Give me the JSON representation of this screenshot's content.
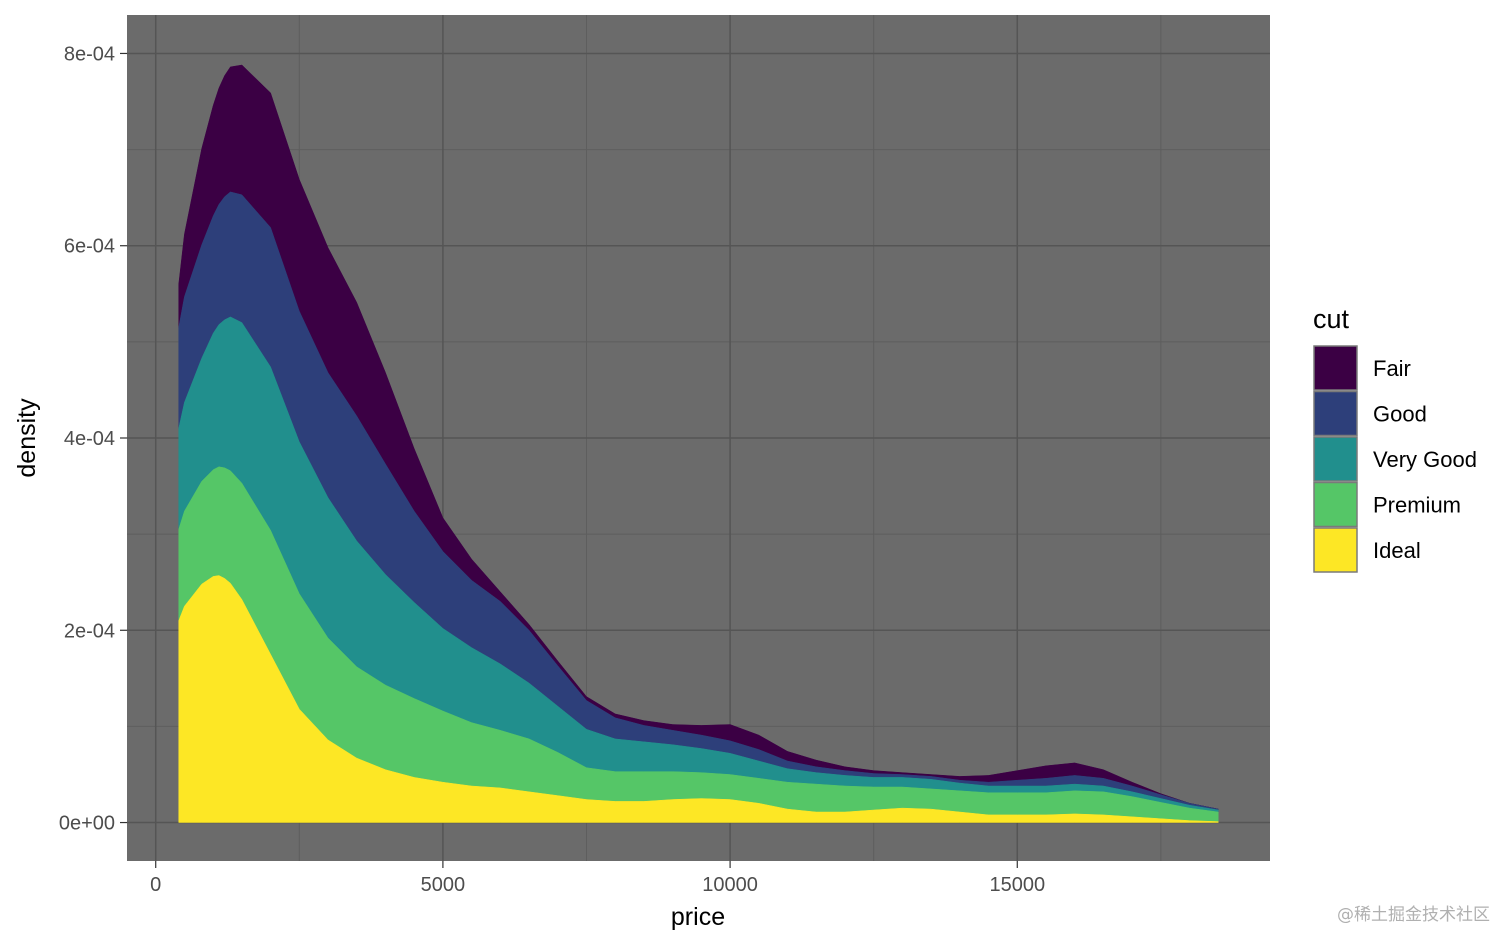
{
  "chart_data": {
    "type": "area",
    "stacked": true,
    "xlabel": "price",
    "ylabel": "density",
    "xlim": [
      -500,
      19400
    ],
    "ylim": [
      -4e-05,
      0.00084
    ],
    "x_ticks": [
      0,
      5000,
      10000,
      15000
    ],
    "x_tick_labels": [
      "0",
      "5000",
      "10000",
      "15000"
    ],
    "y_ticks": [
      0,
      0.0002,
      0.0004,
      0.0006,
      0.0008
    ],
    "y_tick_labels": [
      "0e+00",
      "2e-04",
      "4e-04",
      "6e-04",
      "8e-04"
    ],
    "grid": true,
    "background": "#6b6b6b",
    "legend": {
      "title": "cut",
      "position": "right"
    },
    "x": [
      400,
      500,
      800,
      1000,
      1100,
      1200,
      1300,
      1500,
      2000,
      2500,
      3000,
      3500,
      4000,
      4500,
      5000,
      5500,
      6000,
      6500,
      7000,
      7500,
      8000,
      8500,
      9000,
      9500,
      10000,
      10500,
      11000,
      11500,
      12000,
      12500,
      13000,
      13500,
      14000,
      14500,
      15000,
      15500,
      16000,
      16500,
      17000,
      17500,
      18000,
      18500
    ],
    "series": [
      {
        "name": "Ideal",
        "color": "#fde725",
        "values": [
          0.00021,
          0.000225,
          0.000248,
          0.000256,
          0.000257,
          0.000254,
          0.000249,
          0.000232,
          0.000175,
          0.000118,
          8.6e-05,
          6.7e-05,
          5.5e-05,
          4.7e-05,
          4.2e-05,
          3.8e-05,
          3.6e-05,
          3.2e-05,
          2.8e-05,
          2.4e-05,
          2.2e-05,
          2.2e-05,
          2.4e-05,
          2.5e-05,
          2.4e-05,
          2e-05,
          1.4e-05,
          1.1e-05,
          1.1e-05,
          1.3e-05,
          1.5e-05,
          1.4e-05,
          1.1e-05,
          8e-06,
          8e-06,
          8e-06,
          9e-06,
          8e-06,
          6e-06,
          4e-06,
          2e-06,
          1e-06
        ]
      },
      {
        "name": "Premium",
        "color": "#55c667",
        "values": [
          9.5e-05,
          9.9e-05,
          0.000107,
          0.000111,
          0.000113,
          0.000115,
          0.000117,
          0.000121,
          0.000129,
          0.00012,
          0.000106,
          9.5e-05,
          8.8e-05,
          8.2e-05,
          7.4e-05,
          6.6e-05,
          6e-05,
          5.5e-05,
          4.5e-05,
          3.3e-05,
          3.1e-05,
          3.1e-05,
          2.9e-05,
          2.7e-05,
          2.6e-05,
          2.6e-05,
          2.8e-05,
          2.9e-05,
          2.7e-05,
          2.4e-05,
          2.2e-05,
          2.1e-05,
          2.2e-05,
          2.3e-05,
          2.3e-05,
          2.3e-05,
          2.4e-05,
          2.4e-05,
          2.1e-05,
          1.7e-05,
          1.3e-05,
          1e-05
        ]
      },
      {
        "name": "Very Good",
        "color": "#218f8d",
        "values": [
          0.000105,
          0.000113,
          0.000128,
          0.000142,
          0.000148,
          0.000154,
          0.00016,
          0.000167,
          0.00017,
          0.000158,
          0.000146,
          0.000131,
          0.000115,
          0.0001,
          8.6e-05,
          7.8e-05,
          6.9e-05,
          5.8e-05,
          4.8e-05,
          4e-05,
          3.4e-05,
          3.1e-05,
          2.8e-05,
          2.5e-05,
          2.2e-05,
          1.8e-05,
          1.4e-05,
          1.2e-05,
          1.1e-05,
          1e-05,
          1e-05,
          1e-05,
          8e-06,
          7e-06,
          7e-06,
          7e-06,
          7e-06,
          6e-06,
          5e-06,
          4e-06,
          3e-06,
          2e-06
        ]
      },
      {
        "name": "Good",
        "color": "#2d3f7a",
        "values": [
          0.000105,
          0.00011,
          0.000118,
          0.000122,
          0.000125,
          0.000128,
          0.00013,
          0.000133,
          0.000145,
          0.000136,
          0.00013,
          0.00013,
          0.000115,
          9.5e-05,
          8e-05,
          7e-05,
          6.5e-05,
          5.5e-05,
          4.2e-05,
          3e-05,
          2.2e-05,
          1.7e-05,
          1.5e-05,
          1.4e-05,
          1.3e-05,
          1.2e-05,
          8e-06,
          6e-06,
          5e-06,
          4e-06,
          3e-06,
          3e-06,
          3e-06,
          4e-06,
          6e-06,
          8e-06,
          9e-06,
          8e-06,
          6e-06,
          4e-06,
          2e-06,
          1e-06
        ]
      },
      {
        "name": "Fair",
        "color": "#3b0044",
        "values": [
          4.5e-05,
          6.5e-05,
          0.0001,
          0.000115,
          0.000121,
          0.000126,
          0.00013,
          0.000135,
          0.00014,
          0.000137,
          0.00013,
          0.000118,
          9.5e-05,
          6.5e-05,
          3.5e-05,
          2.2e-05,
          1e-05,
          6e-06,
          5e-06,
          4e-06,
          4e-06,
          5e-06,
          6e-06,
          1e-05,
          1.7e-05,
          1.5e-05,
          1e-05,
          7e-06,
          4e-06,
          3e-06,
          2e-06,
          2e-06,
          4e-06,
          7e-06,
          1e-05,
          1.3e-05,
          1.3e-05,
          9e-06,
          4e-06,
          1e-06,
          0.0,
          0.0
        ]
      }
    ]
  },
  "watermark": "@稀土掘金技术社区"
}
